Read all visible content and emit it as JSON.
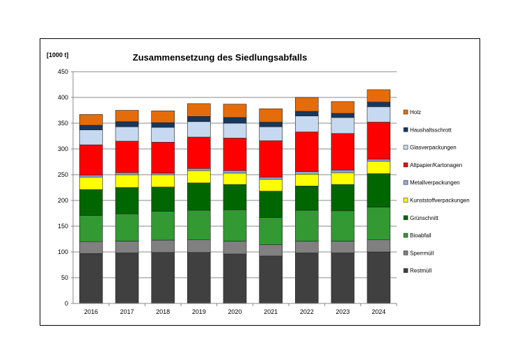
{
  "chart_data": {
    "type": "bar",
    "stacked": true,
    "title": "Zusammensetzung des Siedlungsabfalls",
    "ylabel": "[1000 t]",
    "xlabel": "",
    "ylim": [
      0,
      450
    ],
    "yticks": [
      0,
      50,
      100,
      150,
      200,
      250,
      300,
      350,
      400,
      450
    ],
    "grid": true,
    "legend_position": "right",
    "categories": [
      "2016",
      "2017",
      "2018",
      "2019",
      "2020",
      "2021",
      "2022",
      "2023",
      "2024"
    ],
    "series": [
      {
        "name": "Restmüll",
        "color": "#404040",
        "values": [
          97,
          98,
          99,
          99,
          96,
          92,
          98,
          98,
          100
        ]
      },
      {
        "name": "Sperrmüll",
        "color": "#808080",
        "values": [
          23,
          23,
          24,
          25,
          25,
          22,
          23,
          23,
          24
        ]
      },
      {
        "name": "Bioabfall",
        "color": "#339933",
        "values": [
          51,
          53,
          56,
          57,
          61,
          53,
          60,
          59,
          63
        ]
      },
      {
        "name": "Grünschnitt",
        "color": "#006600",
        "values": [
          50,
          51,
          47,
          53,
          49,
          51,
          47,
          51,
          65
        ]
      },
      {
        "name": "Kunststoffverpackungen",
        "color": "#ffff00",
        "values": [
          24,
          25,
          24,
          24,
          22,
          23,
          23,
          23,
          24
        ]
      },
      {
        "name": "Metallverpackungen",
        "color": "#8eaadb",
        "values": [
          4,
          4,
          3,
          4,
          5,
          4,
          5,
          5,
          4
        ]
      },
      {
        "name": "Altpapier/Kartonagen",
        "color": "#ff0000",
        "values": [
          59,
          61,
          60,
          61,
          63,
          71,
          77,
          71,
          72
        ]
      },
      {
        "name": "Glasverpackungen",
        "color": "#c6d9f0",
        "values": [
          29,
          28,
          29,
          30,
          29,
          27,
          31,
          31,
          30
        ]
      },
      {
        "name": "Haushaltsschrott",
        "color": "#17375e",
        "values": [
          9,
          10,
          9,
          10,
          11,
          9,
          9,
          8,
          9
        ]
      },
      {
        "name": "Holz",
        "color": "#e46c0a",
        "values": [
          21,
          22,
          23,
          25,
          26,
          26,
          27,
          23,
          24
        ]
      }
    ]
  }
}
